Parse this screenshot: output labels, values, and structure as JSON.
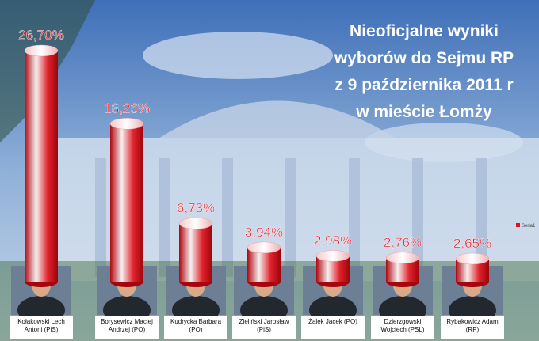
{
  "chart_data": {
    "type": "bar",
    "title_lines": [
      "Nieoficjalne wyniki",
      "wyborów do Sejmu RP",
      "z 9 października 2011 r",
      "w mieście Łomży"
    ],
    "categories": [
      [
        "Kołakowski Lech",
        "Antoni (PiS)"
      ],
      [
        "Borysewicz Maciej",
        "Andrzej (PO)"
      ],
      [
        "Kudrycka Barbara",
        "(PO)"
      ],
      [
        "Zieliński Jarosław",
        "(PiS)"
      ],
      [
        "Żalek Jacek (PO)"
      ],
      [
        "Dzierzgowski",
        "Wojciech (PSL)"
      ],
      [
        "Rybakowicz Adam",
        "(RP)"
      ]
    ],
    "series": [
      {
        "name": "Seria1",
        "color": "#d9141c",
        "values": [
          26.7,
          18.26,
          6.73,
          3.94,
          2.98,
          2.76,
          2.65
        ],
        "value_labels": [
          "26,70%",
          "18,26%",
          "6,73%",
          "3,94%",
          "2,98%",
          "2,76%",
          "2,65%"
        ]
      }
    ],
    "legend": "right"
  }
}
